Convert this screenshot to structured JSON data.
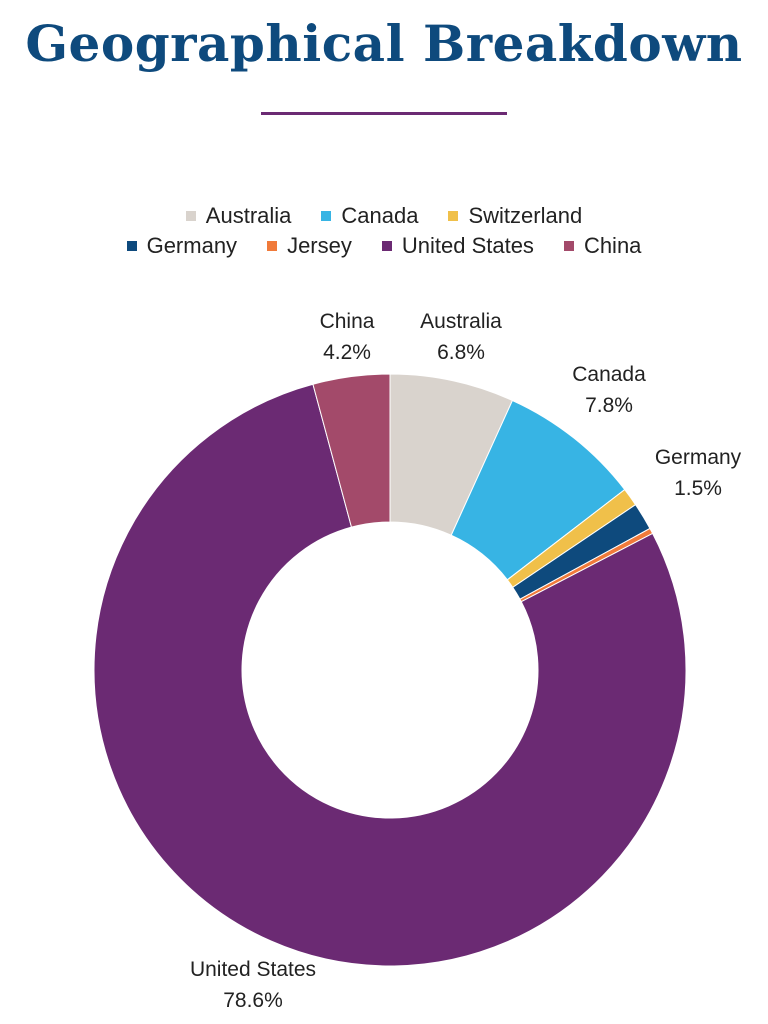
{
  "page": {
    "title": "Geographical Breakdown",
    "title_color": "#0e4a7d",
    "rule_color": "#6b2a73"
  },
  "chart_data": {
    "type": "pie",
    "variant": "donut",
    "title": "Geographical Breakdown",
    "legend_position": "top",
    "legend": [
      "Australia",
      "Canada",
      "Switzerland",
      "Germany",
      "Jersey",
      "United States",
      "China"
    ],
    "slices": [
      {
        "label": "Australia",
        "value": 6.8,
        "value_label": "6.8%",
        "color": "#d9d3cd",
        "show_label": true
      },
      {
        "label": "Canada",
        "value": 7.8,
        "value_label": "7.8%",
        "color": "#37b4e4",
        "show_label": true
      },
      {
        "label": "Switzerland",
        "value": 1.0,
        "value_label": "",
        "color": "#f0c04a",
        "show_label": false
      },
      {
        "label": "Germany",
        "value": 1.5,
        "value_label": "1.5%",
        "color": "#0e4a7d",
        "show_label": true
      },
      {
        "label": "Jersey",
        "value": 0.3,
        "value_label": "",
        "color": "#f07a3a",
        "show_label": false
      },
      {
        "label": "United States",
        "value": 78.6,
        "value_label": "78.6%",
        "color": "#6b2a73",
        "show_label": true
      },
      {
        "label": "China",
        "value": 4.2,
        "value_label": "4.2%",
        "color": "#a34a6a",
        "show_label": true
      }
    ]
  }
}
